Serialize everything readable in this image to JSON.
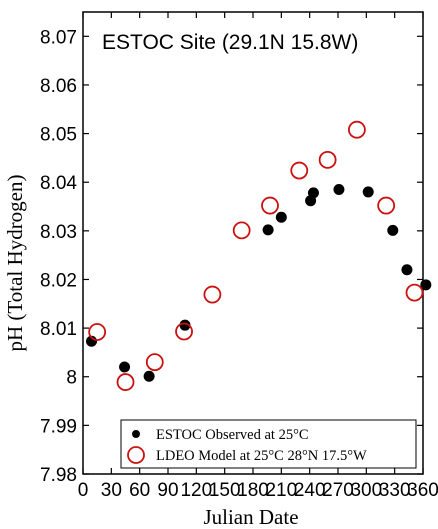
{
  "chart_data": {
    "type": "scatter",
    "title": "ESTOC Site (29.1N 15.8W)",
    "xlabel": "Julian Date",
    "ylabel": "pH (Total Hydrogen)",
    "xlim": [
      0,
      360
    ],
    "ylim": [
      7.98,
      8.075
    ],
    "xticks": [
      0,
      30,
      60,
      90,
      120,
      150,
      180,
      210,
      240,
      270,
      300,
      330,
      360
    ],
    "yticks": [
      7.98,
      7.99,
      8.0,
      8.01,
      8.02,
      8.03,
      8.04,
      8.05,
      8.06,
      8.07
    ],
    "xtick_labels": [
      "0",
      "30",
      "60",
      "90",
      "120",
      "150",
      "180",
      "210",
      "240",
      "270",
      "300",
      "330",
      "360"
    ],
    "ytick_labels": [
      "7.98",
      "7.99",
      "8",
      "8.01",
      "8.02",
      "8.03",
      "8.04",
      "8.05",
      "8.06",
      "8.07"
    ],
    "grid": false,
    "legend_position": "bottom-right",
    "series": [
      {
        "name": "ESTOC Observed at 25°C",
        "marker": "filled-circle",
        "color": "#000000",
        "x": [
          9,
          44,
          70,
          108,
          196,
          210,
          241,
          244,
          271,
          302,
          328,
          343,
          363
        ],
        "y": [
          8.0073,
          8.002,
          8.0001,
          8.0106,
          8.0302,
          8.0328,
          8.0362,
          8.0378,
          8.0385,
          8.038,
          8.0301,
          8.022,
          8.0189
        ]
      },
      {
        "name": "LDEO Model at 25°C 28°N 17.5°W",
        "marker": "open-circle",
        "color": "#cc1111",
        "x": [
          15,
          45,
          76,
          107,
          137,
          168,
          198,
          229,
          259,
          290,
          321,
          351
        ],
        "y": [
          8.0092,
          7.9989,
          8.003,
          8.0093,
          8.0169,
          8.0301,
          8.0352,
          8.0424,
          8.0446,
          8.0508,
          8.0352,
          8.0173
        ]
      }
    ]
  }
}
